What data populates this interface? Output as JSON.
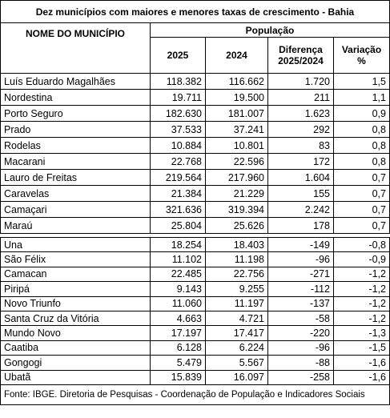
{
  "title": "Dez municípios com maiores e menores taxas de crescimento - Bahia",
  "header": {
    "name": "NOME DO MUNICÍPIO",
    "population": "População",
    "y2025": "2025",
    "y2024": "2024",
    "difference": "Diferença 2025/2024",
    "variation": "Variação %"
  },
  "groups": [
    [
      [
        "Luís Eduardo Magalhães",
        "118.382",
        "116.662",
        "1.720",
        "1,5"
      ],
      [
        "Nordestina",
        "19.711",
        "19.500",
        "211",
        "1,1"
      ],
      [
        "Porto Seguro",
        "182.630",
        "181.007",
        "1.623",
        "0,9"
      ],
      [
        "Prado",
        "37.533",
        "37.241",
        "292",
        "0,8"
      ],
      [
        "Rodelas",
        "10.884",
        "10.801",
        "83",
        "0,8"
      ],
      [
        "Macarani",
        "22.768",
        "22.596",
        "172",
        "0,8"
      ],
      [
        "Lauro de Freitas",
        "219.564",
        "217.960",
        "1.604",
        "0,7"
      ],
      [
        "Caravelas",
        "21.384",
        "21.229",
        "155",
        "0,7"
      ],
      [
        "Camaçari",
        "321.636",
        "319.394",
        "2.242",
        "0,7"
      ],
      [
        "Maraú",
        "25.804",
        "25.626",
        "178",
        "0,7"
      ]
    ],
    [
      [
        "Una",
        "18.254",
        "18.403",
        "-149",
        "-0,8"
      ],
      [
        "São Félix",
        "11.102",
        "11.198",
        "-96",
        "-0,9"
      ],
      [
        "Camacan",
        "22.485",
        "22.756",
        "-271",
        "-1,2"
      ],
      [
        "Piripá",
        "9.143",
        "9.255",
        "-112",
        "-1,2"
      ],
      [
        "Novo Triunfo",
        "11.060",
        "11.197",
        "-137",
        "-1,2"
      ],
      [
        "Santa Cruz da Vitória",
        "4.663",
        "4.721",
        "-58",
        "-1,2"
      ],
      [
        "Mundo Novo",
        "17.197",
        "17.417",
        "-220",
        "-1,3"
      ],
      [
        "Caatiba",
        "6.128",
        "6.224",
        "-96",
        "-1,5"
      ],
      [
        "Gongogi",
        "5.479",
        "5.567",
        "-88",
        "-1,6"
      ],
      [
        "Ubatã",
        "15.839",
        "16.097",
        "-258",
        "-1,6"
      ]
    ]
  ],
  "footer": "Fonte: IBGE. Diretoria de Pesquisas - Coordenação de População e Indicadores Sociais"
}
